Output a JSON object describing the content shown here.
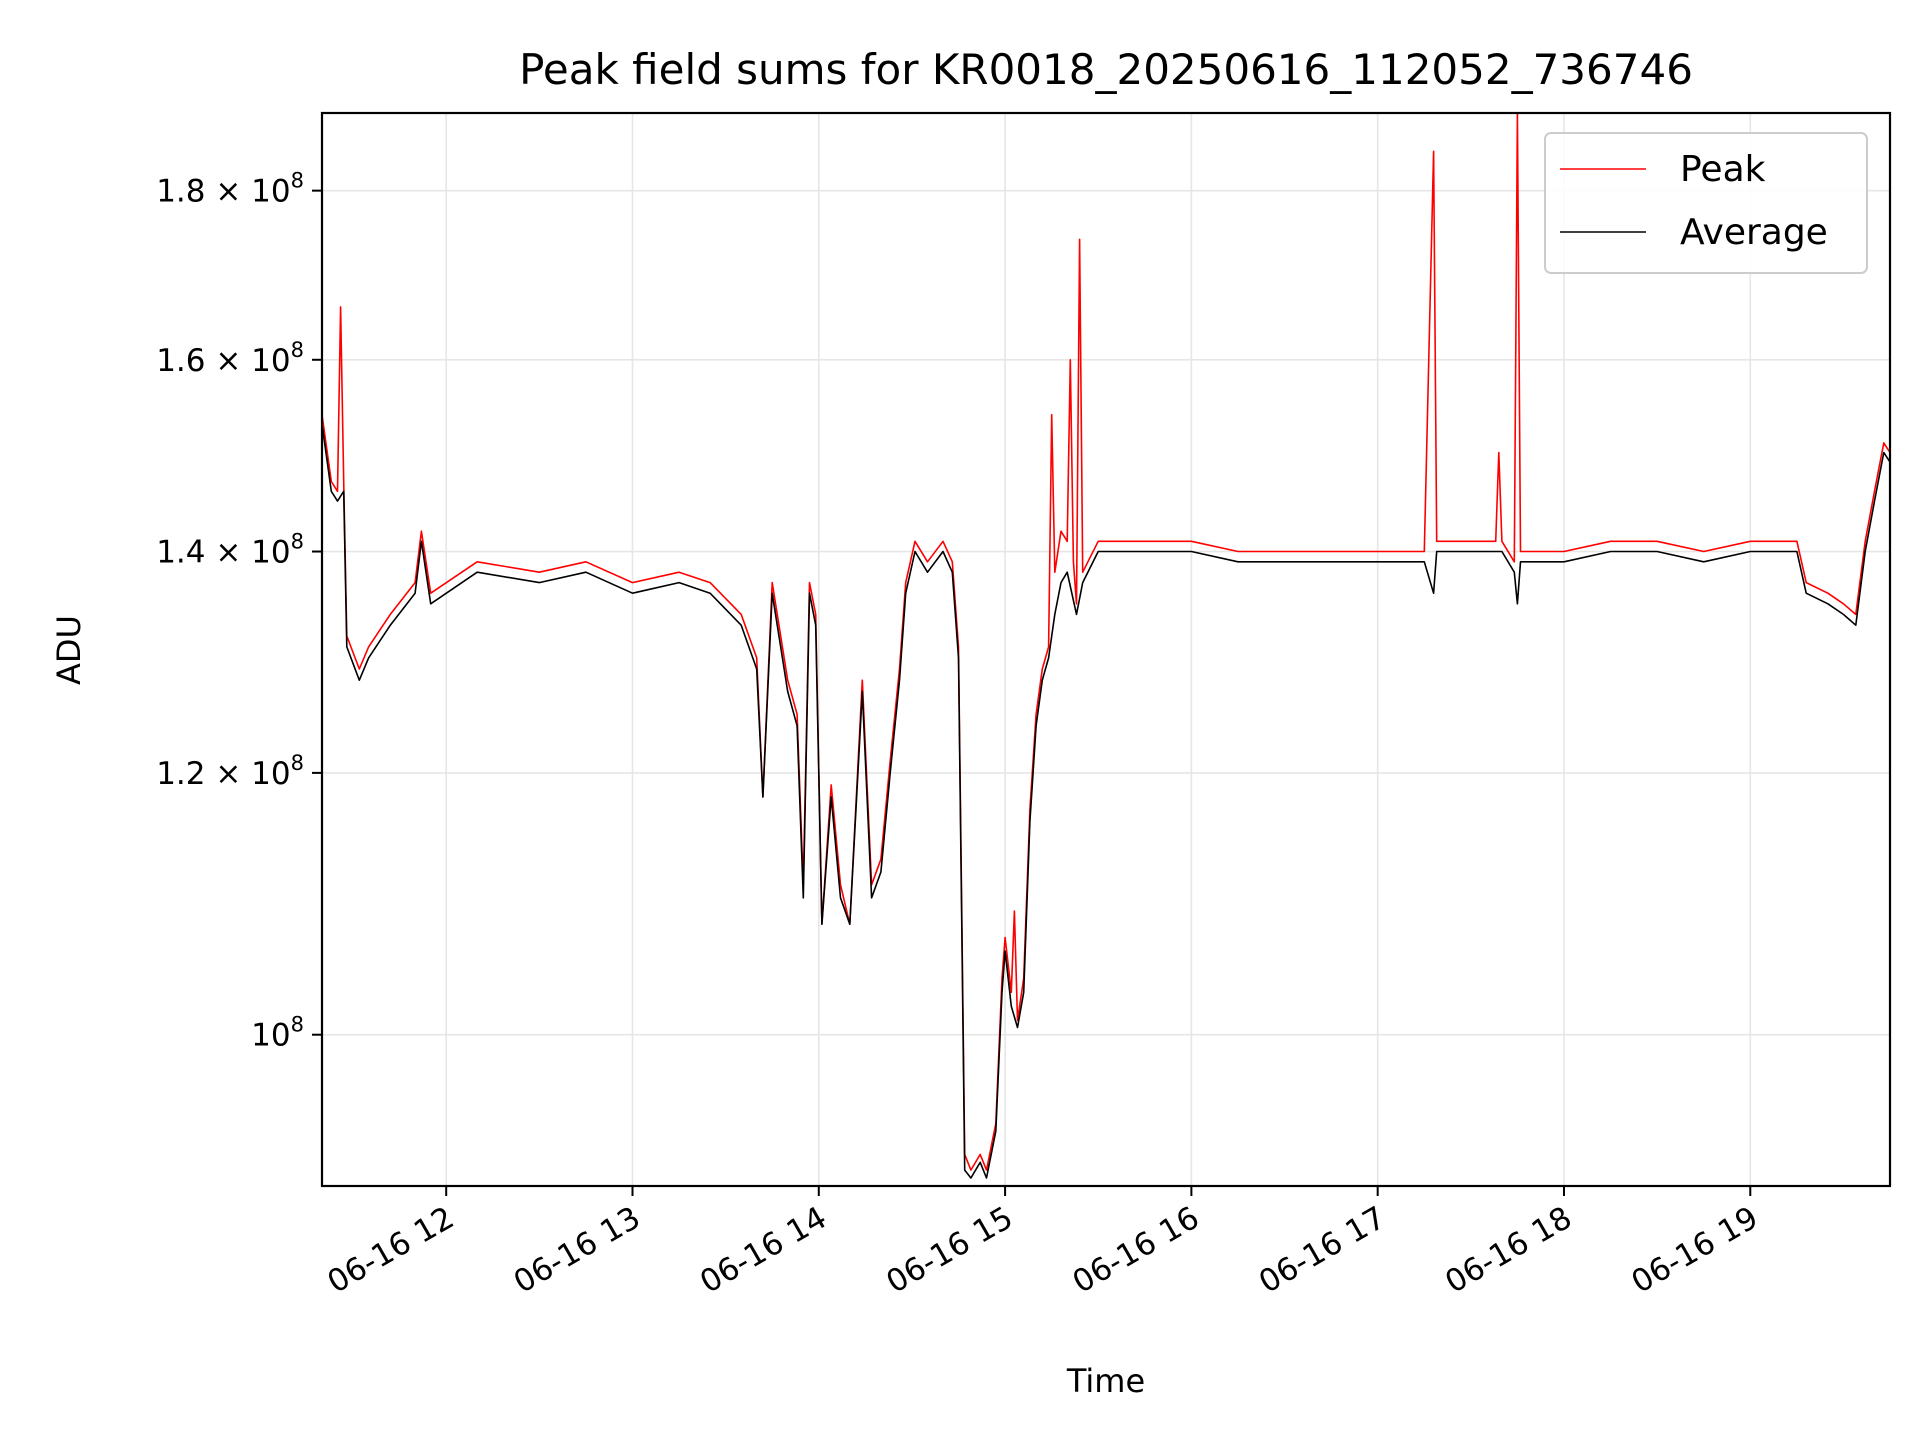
{
  "chart_data": {
    "type": "line",
    "title": "Peak field sums for KR0018_20250616_112052_736746",
    "xlabel": "Time",
    "ylabel": "ADU",
    "y_scale": "log",
    "xlim": [
      "2025-06-16 11:20",
      "2025-06-16 19:45"
    ],
    "ylim": [
      90000000,
      190000000
    ],
    "grid": true,
    "legend_position": "top-right",
    "x_ticks": [
      {
        "value": "2025-06-16 12:00",
        "label": "06-16 12"
      },
      {
        "value": "2025-06-16 13:00",
        "label": "06-16 13"
      },
      {
        "value": "2025-06-16 14:00",
        "label": "06-16 14"
      },
      {
        "value": "2025-06-16 15:00",
        "label": "06-16 15"
      },
      {
        "value": "2025-06-16 16:00",
        "label": "06-16 16"
      },
      {
        "value": "2025-06-16 17:00",
        "label": "06-16 17"
      },
      {
        "value": "2025-06-16 18:00",
        "label": "06-16 18"
      },
      {
        "value": "2025-06-16 19:00",
        "label": "06-16 19"
      }
    ],
    "y_ticks": [
      {
        "value": 100000000,
        "mantissa": "",
        "exponent": "8"
      },
      {
        "value": 120000000,
        "mantissa": "1.2",
        "exponent": "8"
      },
      {
        "value": 140000000,
        "mantissa": "1.4",
        "exponent": "8"
      },
      {
        "value": 160000000,
        "mantissa": "1.6",
        "exponent": "8"
      },
      {
        "value": 180000000,
        "mantissa": "1.8",
        "exponent": "8"
      }
    ],
    "series": [
      {
        "name": "Peak",
        "color": "#ff0000",
        "points": [
          [
            "2025-06-16 11:20",
            154000000
          ],
          [
            "2025-06-16 11:23",
            147000000
          ],
          [
            "2025-06-16 11:25",
            146000000
          ],
          [
            "2025-06-16 11:26",
            166000000
          ],
          [
            "2025-06-16 11:27",
            147000000
          ],
          [
            "2025-06-16 11:28",
            132000000
          ],
          [
            "2025-06-16 11:32",
            129000000
          ],
          [
            "2025-06-16 11:35",
            131000000
          ],
          [
            "2025-06-16 11:42",
            134000000
          ],
          [
            "2025-06-16 11:50",
            137000000
          ],
          [
            "2025-06-16 11:52",
            142000000
          ],
          [
            "2025-06-16 11:55",
            136000000
          ],
          [
            "2025-06-16 12:10",
            139000000
          ],
          [
            "2025-06-16 12:30",
            138000000
          ],
          [
            "2025-06-16 12:45",
            139000000
          ],
          [
            "2025-06-16 13:00",
            137000000
          ],
          [
            "2025-06-16 13:15",
            138000000
          ],
          [
            "2025-06-16 13:25",
            137000000
          ],
          [
            "2025-06-16 13:35",
            134000000
          ],
          [
            "2025-06-16 13:40",
            130000000
          ],
          [
            "2025-06-16 13:42",
            118000000
          ],
          [
            "2025-06-16 13:45",
            137000000
          ],
          [
            "2025-06-16 13:50",
            128000000
          ],
          [
            "2025-06-16 13:53",
            125000000
          ],
          [
            "2025-06-16 13:55",
            111000000
          ],
          [
            "2025-06-16 13:57",
            137000000
          ],
          [
            "2025-06-16 13:59",
            134000000
          ],
          [
            "2025-06-16 14:01",
            108000000
          ],
          [
            "2025-06-16 14:04",
            119000000
          ],
          [
            "2025-06-16 14:07",
            111000000
          ],
          [
            "2025-06-16 14:10",
            108000000
          ],
          [
            "2025-06-16 14:14",
            128000000
          ],
          [
            "2025-06-16 14:17",
            111000000
          ],
          [
            "2025-06-16 14:20",
            113000000
          ],
          [
            "2025-06-16 14:23",
            121000000
          ],
          [
            "2025-06-16 14:26",
            129000000
          ],
          [
            "2025-06-16 14:28",
            137000000
          ],
          [
            "2025-06-16 14:31",
            141000000
          ],
          [
            "2025-06-16 14:35",
            139000000
          ],
          [
            "2025-06-16 14:40",
            141000000
          ],
          [
            "2025-06-16 14:43",
            139000000
          ],
          [
            "2025-06-16 14:45",
            131000000
          ],
          [
            "2025-06-16 14:46",
            110000000
          ],
          [
            "2025-06-16 14:47",
            92000000
          ],
          [
            "2025-06-16 14:49",
            91000000
          ],
          [
            "2025-06-16 14:52",
            92000000
          ],
          [
            "2025-06-16 14:54",
            91000000
          ],
          [
            "2025-06-16 14:57",
            94000000
          ],
          [
            "2025-06-16 14:59",
            104000000
          ],
          [
            "2025-06-16 15:00",
            107000000
          ],
          [
            "2025-06-16 15:02",
            103000000
          ],
          [
            "2025-06-16 15:03",
            109000000
          ],
          [
            "2025-06-16 15:04",
            101000000
          ],
          [
            "2025-06-16 15:06",
            104000000
          ],
          [
            "2025-06-16 15:08",
            117000000
          ],
          [
            "2025-06-16 15:10",
            125000000
          ],
          [
            "2025-06-16 15:12",
            129000000
          ],
          [
            "2025-06-16 15:14",
            131000000
          ],
          [
            "2025-06-16 15:15",
            154000000
          ],
          [
            "2025-06-16 15:16",
            138000000
          ],
          [
            "2025-06-16 15:18",
            142000000
          ],
          [
            "2025-06-16 15:20",
            141000000
          ],
          [
            "2025-06-16 15:21",
            160000000
          ],
          [
            "2025-06-16 15:22",
            139000000
          ],
          [
            "2025-06-16 15:23",
            135000000
          ],
          [
            "2025-06-16 15:24",
            174000000
          ],
          [
            "2025-06-16 15:25",
            138000000
          ],
          [
            "2025-06-16 15:30",
            141000000
          ],
          [
            "2025-06-16 15:45",
            141000000
          ],
          [
            "2025-06-16 16:00",
            141000000
          ],
          [
            "2025-06-16 16:15",
            140000000
          ],
          [
            "2025-06-16 16:30",
            140000000
          ],
          [
            "2025-06-16 16:45",
            140000000
          ],
          [
            "2025-06-16 17:00",
            140000000
          ],
          [
            "2025-06-16 17:15",
            140000000
          ],
          [
            "2025-06-16 17:18",
            185000000
          ],
          [
            "2025-06-16 17:19",
            141000000
          ],
          [
            "2025-06-16 17:30",
            141000000
          ],
          [
            "2025-06-16 17:38",
            141000000
          ],
          [
            "2025-06-16 17:39",
            150000000
          ],
          [
            "2025-06-16 17:40",
            141000000
          ],
          [
            "2025-06-16 17:44",
            139000000
          ],
          [
            "2025-06-16 17:45",
            190000000
          ],
          [
            "2025-06-16 17:46",
            140000000
          ],
          [
            "2025-06-16 18:00",
            140000000
          ],
          [
            "2025-06-16 18:15",
            141000000
          ],
          [
            "2025-06-16 18:30",
            141000000
          ],
          [
            "2025-06-16 18:45",
            140000000
          ],
          [
            "2025-06-16 19:00",
            141000000
          ],
          [
            "2025-06-16 19:15",
            141000000
          ],
          [
            "2025-06-16 19:18",
            137000000
          ],
          [
            "2025-06-16 19:25",
            136000000
          ],
          [
            "2025-06-16 19:30",
            135000000
          ],
          [
            "2025-06-16 19:34",
            134000000
          ],
          [
            "2025-06-16 19:37",
            141000000
          ],
          [
            "2025-06-16 19:40",
            146000000
          ],
          [
            "2025-06-16 19:43",
            151000000
          ],
          [
            "2025-06-16 19:45",
            150000000
          ]
        ]
      },
      {
        "name": "Average",
        "color": "#000000",
        "points": [
          [
            "2025-06-16 11:20",
            153000000
          ],
          [
            "2025-06-16 11:23",
            146000000
          ],
          [
            "2025-06-16 11:25",
            145000000
          ],
          [
            "2025-06-16 11:27",
            146000000
          ],
          [
            "2025-06-16 11:28",
            131000000
          ],
          [
            "2025-06-16 11:32",
            128000000
          ],
          [
            "2025-06-16 11:35",
            130000000
          ],
          [
            "2025-06-16 11:42",
            133000000
          ],
          [
            "2025-06-16 11:50",
            136000000
          ],
          [
            "2025-06-16 11:52",
            141000000
          ],
          [
            "2025-06-16 11:55",
            135000000
          ],
          [
            "2025-06-16 12:10",
            138000000
          ],
          [
            "2025-06-16 12:30",
            137000000
          ],
          [
            "2025-06-16 12:45",
            138000000
          ],
          [
            "2025-06-16 13:00",
            136000000
          ],
          [
            "2025-06-16 13:15",
            137000000
          ],
          [
            "2025-06-16 13:25",
            136000000
          ],
          [
            "2025-06-16 13:35",
            133000000
          ],
          [
            "2025-06-16 13:40",
            129000000
          ],
          [
            "2025-06-16 13:42",
            118000000
          ],
          [
            "2025-06-16 13:45",
            136000000
          ],
          [
            "2025-06-16 13:50",
            127000000
          ],
          [
            "2025-06-16 13:53",
            124000000
          ],
          [
            "2025-06-16 13:55",
            110000000
          ],
          [
            "2025-06-16 13:57",
            136000000
          ],
          [
            "2025-06-16 13:59",
            133000000
          ],
          [
            "2025-06-16 14:01",
            108000000
          ],
          [
            "2025-06-16 14:04",
            118000000
          ],
          [
            "2025-06-16 14:07",
            110000000
          ],
          [
            "2025-06-16 14:10",
            108000000
          ],
          [
            "2025-06-16 14:14",
            127000000
          ],
          [
            "2025-06-16 14:17",
            110000000
          ],
          [
            "2025-06-16 14:20",
            112000000
          ],
          [
            "2025-06-16 14:23",
            120000000
          ],
          [
            "2025-06-16 14:26",
            128000000
          ],
          [
            "2025-06-16 14:28",
            136000000
          ],
          [
            "2025-06-16 14:31",
            140000000
          ],
          [
            "2025-06-16 14:35",
            138000000
          ],
          [
            "2025-06-16 14:40",
            140000000
          ],
          [
            "2025-06-16 14:43",
            138000000
          ],
          [
            "2025-06-16 14:45",
            130000000
          ],
          [
            "2025-06-16 14:46",
            109000000
          ],
          [
            "2025-06-16 14:47",
            91000000
          ],
          [
            "2025-06-16 14:49",
            90500000
          ],
          [
            "2025-06-16 14:52",
            91500000
          ],
          [
            "2025-06-16 14:54",
            90500000
          ],
          [
            "2025-06-16 14:57",
            93500000
          ],
          [
            "2025-06-16 14:59",
            103000000
          ],
          [
            "2025-06-16 15:00",
            106000000
          ],
          [
            "2025-06-16 15:02",
            102000000
          ],
          [
            "2025-06-16 15:04",
            100500000
          ],
          [
            "2025-06-16 15:06",
            103000000
          ],
          [
            "2025-06-16 15:08",
            116000000
          ],
          [
            "2025-06-16 15:10",
            124000000
          ],
          [
            "2025-06-16 15:12",
            128000000
          ],
          [
            "2025-06-16 15:14",
            130000000
          ],
          [
            "2025-06-16 15:16",
            134000000
          ],
          [
            "2025-06-16 15:18",
            137000000
          ],
          [
            "2025-06-16 15:20",
            138000000
          ],
          [
            "2025-06-16 15:23",
            134000000
          ],
          [
            "2025-06-16 15:25",
            137000000
          ],
          [
            "2025-06-16 15:30",
            140000000
          ],
          [
            "2025-06-16 15:45",
            140000000
          ],
          [
            "2025-06-16 16:00",
            140000000
          ],
          [
            "2025-06-16 16:15",
            139000000
          ],
          [
            "2025-06-16 16:30",
            139000000
          ],
          [
            "2025-06-16 16:45",
            139000000
          ],
          [
            "2025-06-16 17:00",
            139000000
          ],
          [
            "2025-06-16 17:15",
            139000000
          ],
          [
            "2025-06-16 17:18",
            136000000
          ],
          [
            "2025-06-16 17:19",
            140000000
          ],
          [
            "2025-06-16 17:30",
            140000000
          ],
          [
            "2025-06-16 17:40",
            140000000
          ],
          [
            "2025-06-16 17:44",
            138000000
          ],
          [
            "2025-06-16 17:45",
            135000000
          ],
          [
            "2025-06-16 17:46",
            139000000
          ],
          [
            "2025-06-16 18:00",
            139000000
          ],
          [
            "2025-06-16 18:15",
            140000000
          ],
          [
            "2025-06-16 18:30",
            140000000
          ],
          [
            "2025-06-16 18:45",
            139000000
          ],
          [
            "2025-06-16 19:00",
            140000000
          ],
          [
            "2025-06-16 19:15",
            140000000
          ],
          [
            "2025-06-16 19:18",
            136000000
          ],
          [
            "2025-06-16 19:25",
            135000000
          ],
          [
            "2025-06-16 19:30",
            134000000
          ],
          [
            "2025-06-16 19:34",
            133000000
          ],
          [
            "2025-06-16 19:37",
            140000000
          ],
          [
            "2025-06-16 19:40",
            145000000
          ],
          [
            "2025-06-16 19:43",
            150000000
          ],
          [
            "2025-06-16 19:45",
            149000000
          ]
        ]
      }
    ]
  }
}
